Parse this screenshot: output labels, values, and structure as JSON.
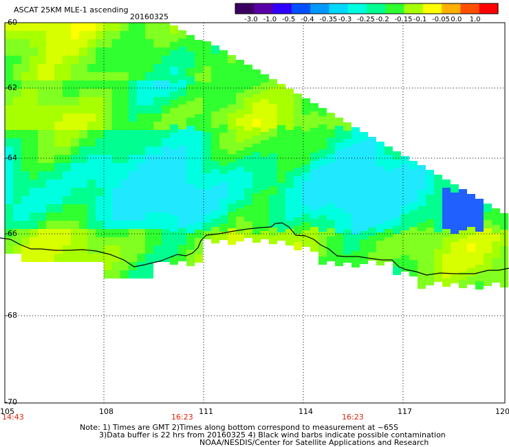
{
  "header": {
    "title": "ASCAT 25KM MLE-1 ascending",
    "date": "20160325"
  },
  "colorbar": {
    "labels": [
      "-3.0",
      "-1.0",
      "-0.5",
      "-0.4",
      "-0.35",
      "-0.3",
      "-0.25",
      "-0.2",
      "-0.15",
      "-0.1",
      "-0.05",
      "0.0",
      "1.0"
    ],
    "colors": [
      "#3a0060",
      "#5a00a8",
      "#3000ff",
      "#0050ff",
      "#0098ff",
      "#00d8ff",
      "#00ffe0",
      "#00ff90",
      "#30ff30",
      "#a8ff00",
      "#ffff00",
      "#ffb000",
      "#ff5000",
      "#ff0000"
    ]
  },
  "axes": {
    "lat_labels": [
      "-60",
      "-62",
      "-64",
      "-66",
      "-68",
      "-70"
    ],
    "lon_labels": [
      "105",
      "108",
      "111",
      "114",
      "117",
      "120"
    ]
  },
  "time_labels": [
    "14:43",
    "16:23",
    "16:23"
  ],
  "notes": [
    "Note: 1) Times are GMT 2)Times along bottom correspond to measurement at ~65S",
    "3)Data buffer is 22 hrs from 20160325 4) Black wind barbs indicate possible contamination",
    "NOAA/NESDIS/Center for Satellite Applications and Research"
  ]
}
